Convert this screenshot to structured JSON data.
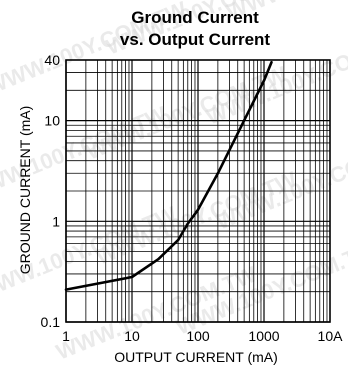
{
  "chart_data": {
    "type": "line",
    "title": "Ground Current",
    "subtitle": "vs. Output Current",
    "xlabel": "OUTPUT CURRENT (mA)",
    "ylabel": "GROUND CURRENT (mA)",
    "x_scale": "log",
    "y_scale": "log",
    "xlim": [
      1,
      10000
    ],
    "ylim": [
      0.1,
      40
    ],
    "x_ticks": [
      {
        "value": 1,
        "label": "1"
      },
      {
        "value": 10,
        "label": "10"
      },
      {
        "value": 100,
        "label": "100"
      },
      {
        "value": 1000,
        "label": "1000"
      },
      {
        "value": 10000,
        "label": "10A"
      }
    ],
    "y_ticks": [
      {
        "value": 0.1,
        "label": "0.1"
      },
      {
        "value": 1,
        "label": "1"
      },
      {
        "value": 10,
        "label": "10"
      },
      {
        "value": 40,
        "label": "40"
      }
    ],
    "grid": true,
    "series": [
      {
        "x": [
          1,
          10,
          25,
          50,
          70,
          100,
          200,
          500,
          1000,
          1300
        ],
        "y": [
          0.21,
          0.28,
          0.42,
          0.65,
          0.95,
          1.3,
          3.0,
          10.0,
          25.0,
          38.0
        ]
      }
    ],
    "colors": {
      "line": "#000000",
      "grid": "#000000",
      "background": "#ffffff"
    }
  },
  "watermark": "WWW.100Y.COM.TW"
}
